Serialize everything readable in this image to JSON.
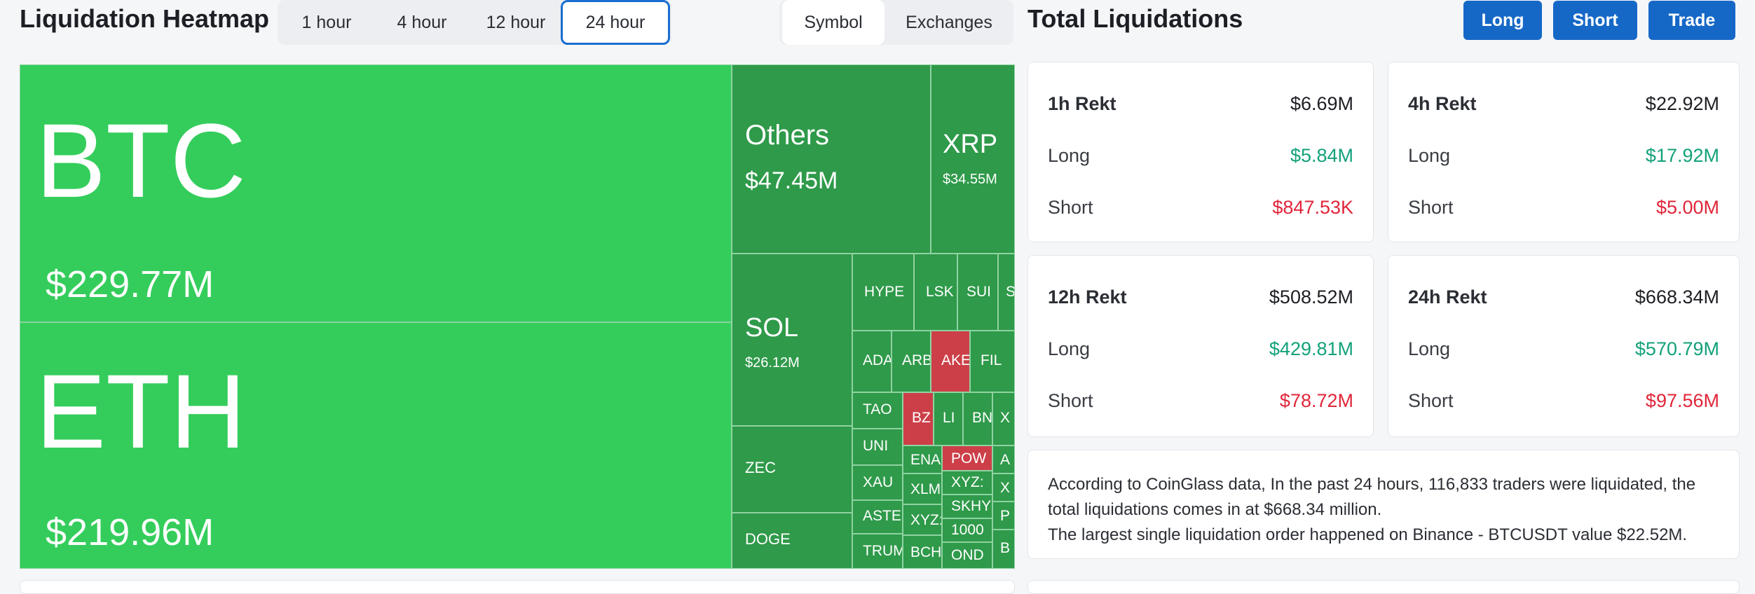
{
  "header": {
    "heatmap_title": "Liquidation Heatmap",
    "time_tabs": [
      "1 hour",
      "4 hour",
      "12 hour",
      "24 hour"
    ],
    "active_tab": "24 hour",
    "view_tabs": [
      "Symbol",
      "Exchanges"
    ],
    "active_view": "Symbol",
    "total_title": "Total Liquidations",
    "buttons": {
      "long": "Long",
      "short": "Short",
      "trade": "Trade"
    }
  },
  "colors": {
    "positive": "#34cd5b",
    "tile_green": "#2f9a4a",
    "tile_red": "#cc3f48",
    "accent": "#1668c7",
    "long_text": "#13a17a",
    "short_text": "#e0263a"
  },
  "treemap": {
    "btc": {
      "symbol": "BTC",
      "value": "$229.77M"
    },
    "eth": {
      "symbol": "ETH",
      "value": "$219.96M"
    },
    "others": {
      "symbol": "Others",
      "value": "$47.45M"
    },
    "xrp": {
      "symbol": "XRP",
      "value": "$34.55M"
    },
    "sol": {
      "symbol": "SOL",
      "value": "$26.12M"
    },
    "zec": {
      "symbol": "ZEC"
    },
    "doge": {
      "symbol": "DOGE"
    },
    "small": [
      "HYPE",
      "LSK",
      "SUI",
      "S",
      "ADA",
      "ARB",
      "AKE",
      "FIL",
      "TAO",
      "BZ",
      "LI",
      "BN",
      "X",
      "UNI",
      "ENA",
      "POW",
      "A",
      "XAU",
      "XLM",
      "XYZ:",
      "X",
      "ASTER",
      "XYZ:",
      "SKHY",
      "P",
      "TRUMP",
      "BCH",
      "1000",
      "OND",
      "B"
    ]
  },
  "stats": [
    {
      "head": "1h Rekt",
      "total": "$6.69M",
      "long_label": "Long",
      "long": "$5.84M",
      "short_label": "Short",
      "short": "$847.53K"
    },
    {
      "head": "4h Rekt",
      "total": "$22.92M",
      "long_label": "Long",
      "long": "$17.92M",
      "short_label": "Short",
      "short": "$5.00M"
    },
    {
      "head": "12h Rekt",
      "total": "$508.52M",
      "long_label": "Long",
      "long": "$429.81M",
      "short_label": "Short",
      "short": "$78.72M"
    },
    {
      "head": "24h Rekt",
      "total": "$668.34M",
      "long_label": "Long",
      "long": "$570.79M",
      "short_label": "Short",
      "short": "$97.56M"
    }
  ],
  "info": {
    "line1": "According to CoinGlass data, In the past 24 hours, 116,833 traders were liquidated, the",
    "line2": "total liquidations comes in at $668.34 million.",
    "line3": "The largest single liquidation order happened on Binance - BTCUSDT value $22.52M."
  }
}
